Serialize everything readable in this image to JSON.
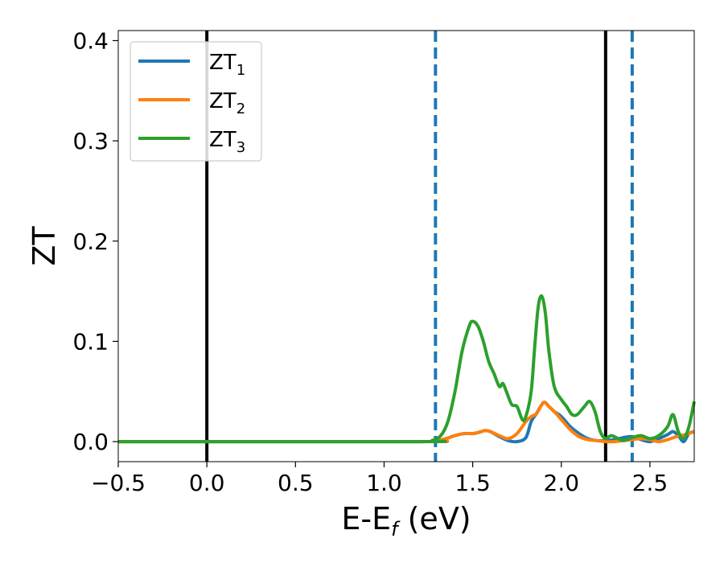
{
  "chart_data": {
    "type": "line",
    "title": "",
    "xlabel": {
      "base": "E-E",
      "sub": "f",
      "suffix": " (eV)"
    },
    "ylabel": "ZT",
    "xlim": [
      -0.5,
      2.75
    ],
    "ylim": [
      -0.02,
      0.41
    ],
    "xticks": [
      -0.5,
      0.0,
      0.5,
      1.0,
      1.5,
      2.0,
      2.5
    ],
    "xtick_labels": [
      "−0.5",
      "0.0",
      "0.5",
      "1.0",
      "1.5",
      "2.0",
      "2.5"
    ],
    "yticks": [
      0.0,
      0.1,
      0.2,
      0.3,
      0.4
    ],
    "ytick_labels": [
      "0.0",
      "0.1",
      "0.2",
      "0.3",
      "0.4"
    ],
    "grid": false,
    "legend_position": "upper-left",
    "series": [
      {
        "name": "ZT",
        "name_sub": "1",
        "color": "#1f77b4",
        "points": [
          [
            -0.5,
            0.0
          ],
          [
            1.2,
            0.0
          ],
          [
            1.3,
            0.001
          ],
          [
            1.35,
            0.003
          ],
          [
            1.4,
            0.006
          ],
          [
            1.45,
            0.008
          ],
          [
            1.5,
            0.008
          ],
          [
            1.53,
            0.009
          ],
          [
            1.57,
            0.011
          ],
          [
            1.6,
            0.01
          ],
          [
            1.65,
            0.005
          ],
          [
            1.7,
            0.001
          ],
          [
            1.75,
            0.0
          ],
          [
            1.8,
            0.004
          ],
          [
            1.83,
            0.02
          ],
          [
            1.86,
            0.028
          ],
          [
            1.9,
            0.039
          ],
          [
            1.93,
            0.035
          ],
          [
            1.96,
            0.03
          ],
          [
            2.0,
            0.025
          ],
          [
            2.05,
            0.015
          ],
          [
            2.1,
            0.008
          ],
          [
            2.15,
            0.003
          ],
          [
            2.2,
            0.001
          ],
          [
            2.25,
            0.001
          ],
          [
            2.3,
            0.002
          ],
          [
            2.35,
            0.004
          ],
          [
            2.4,
            0.005
          ],
          [
            2.45,
            0.002
          ],
          [
            2.5,
            0.0
          ],
          [
            2.55,
            0.003
          ],
          [
            2.6,
            0.007
          ],
          [
            2.63,
            0.01
          ],
          [
            2.66,
            0.006
          ],
          [
            2.69,
            0.0
          ],
          [
            2.72,
            0.008
          ],
          [
            2.75,
            0.01
          ]
        ]
      },
      {
        "name": "ZT",
        "name_sub": "2",
        "color": "#ff7f0e",
        "points": [
          [
            -0.5,
            0.0
          ],
          [
            1.2,
            0.0
          ],
          [
            1.3,
            0.001
          ],
          [
            1.35,
            0.003
          ],
          [
            1.4,
            0.006
          ],
          [
            1.45,
            0.008
          ],
          [
            1.5,
            0.008
          ],
          [
            1.53,
            0.009
          ],
          [
            1.57,
            0.011
          ],
          [
            1.6,
            0.01
          ],
          [
            1.65,
            0.006
          ],
          [
            1.7,
            0.003
          ],
          [
            1.75,
            0.008
          ],
          [
            1.8,
            0.02
          ],
          [
            1.83,
            0.025
          ],
          [
            1.86,
            0.028
          ],
          [
            1.9,
            0.039
          ],
          [
            1.93,
            0.035
          ],
          [
            1.96,
            0.03
          ],
          [
            2.0,
            0.022
          ],
          [
            2.05,
            0.012
          ],
          [
            2.1,
            0.005
          ],
          [
            2.15,
            0.002
          ],
          [
            2.2,
            0.001
          ],
          [
            2.25,
            0.0
          ],
          [
            2.3,
            0.0
          ],
          [
            2.35,
            0.001
          ],
          [
            2.4,
            0.002
          ],
          [
            2.45,
            0.003
          ],
          [
            2.5,
            0.002
          ],
          [
            2.55,
            0.0
          ],
          [
            2.6,
            0.002
          ],
          [
            2.65,
            0.005
          ],
          [
            2.7,
            0.007
          ],
          [
            2.75,
            0.01
          ]
        ]
      },
      {
        "name": "ZT",
        "name_sub": "3",
        "color": "#2ca02c",
        "points": [
          [
            -0.5,
            0.0
          ],
          [
            1.2,
            0.0
          ],
          [
            1.27,
            0.001
          ],
          [
            1.32,
            0.006
          ],
          [
            1.36,
            0.02
          ],
          [
            1.4,
            0.05
          ],
          [
            1.44,
            0.09
          ],
          [
            1.48,
            0.115
          ],
          [
            1.5,
            0.12
          ],
          [
            1.53,
            0.115
          ],
          [
            1.56,
            0.1
          ],
          [
            1.59,
            0.08
          ],
          [
            1.62,
            0.068
          ],
          [
            1.65,
            0.055
          ],
          [
            1.67,
            0.058
          ],
          [
            1.69,
            0.05
          ],
          [
            1.72,
            0.037
          ],
          [
            1.75,
            0.035
          ],
          [
            1.78,
            0.022
          ],
          [
            1.8,
            0.025
          ],
          [
            1.83,
            0.05
          ],
          [
            1.85,
            0.095
          ],
          [
            1.87,
            0.135
          ],
          [
            1.89,
            0.145
          ],
          [
            1.91,
            0.128
          ],
          [
            1.93,
            0.09
          ],
          [
            1.96,
            0.055
          ],
          [
            2.0,
            0.042
          ],
          [
            2.03,
            0.035
          ],
          [
            2.06,
            0.027
          ],
          [
            2.09,
            0.027
          ],
          [
            2.13,
            0.035
          ],
          [
            2.16,
            0.04
          ],
          [
            2.19,
            0.03
          ],
          [
            2.22,
            0.01
          ],
          [
            2.25,
            0.003
          ],
          [
            2.28,
            0.006
          ],
          [
            2.31,
            0.004
          ],
          [
            2.35,
            0.001
          ],
          [
            2.4,
            0.004
          ],
          [
            2.45,
            0.006
          ],
          [
            2.5,
            0.003
          ],
          [
            2.55,
            0.006
          ],
          [
            2.6,
            0.015
          ],
          [
            2.63,
            0.027
          ],
          [
            2.66,
            0.01
          ],
          [
            2.69,
            0.003
          ],
          [
            2.72,
            0.015
          ],
          [
            2.75,
            0.04
          ]
        ]
      }
    ],
    "vlines": [
      {
        "x": 0.0,
        "style": "solid",
        "color": "#000000"
      },
      {
        "x": 2.25,
        "style": "solid",
        "color": "#000000"
      },
      {
        "x": 1.29,
        "style": "dashed",
        "color": "#1f77b4"
      },
      {
        "x": 2.4,
        "style": "dashed",
        "color": "#1f77b4"
      }
    ]
  }
}
